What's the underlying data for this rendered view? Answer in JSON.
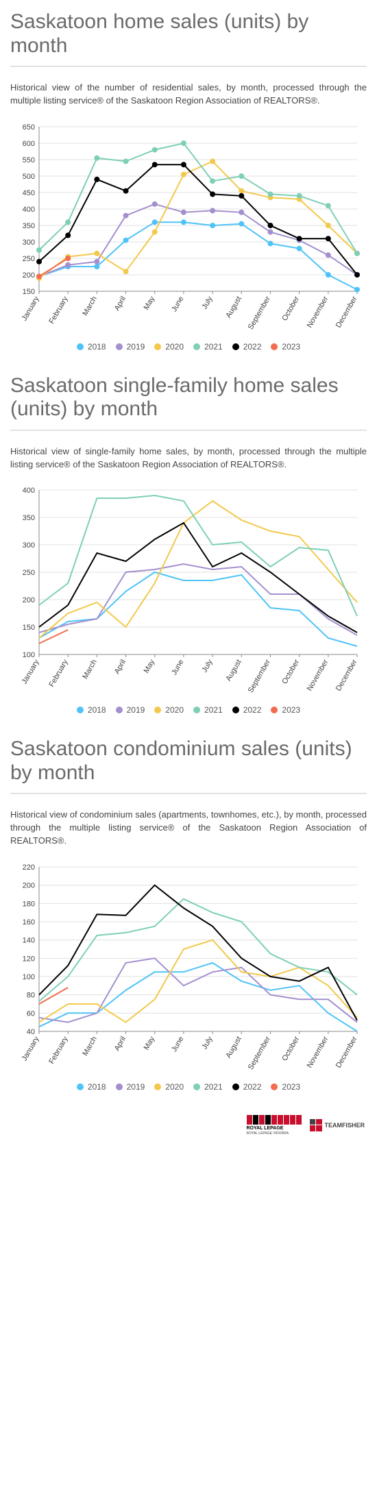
{
  "colors": {
    "grid": "#e0e0e0",
    "axis": "#8a8a8a",
    "text": "#444444",
    "background": "#ffffff"
  },
  "series_colors": {
    "2018": "#4fc3f7",
    "2019": "#a48fce",
    "2020": "#f2c94c",
    "2021": "#7dcfb6",
    "2022": "#000000",
    "2023": "#f26c4f"
  },
  "series_order": [
    "2018",
    "2019",
    "2020",
    "2021",
    "2022",
    "2023"
  ],
  "months": [
    "January",
    "February",
    "March",
    "April",
    "May",
    "June",
    "July",
    "August",
    "September",
    "October",
    "November",
    "December"
  ],
  "footer": {
    "logo1_top": "ROYAL LEPAGE",
    "logo1_sub": "ROYAL LEPAGE VIDORRA",
    "logo2": "TEAMFISHER"
  },
  "charts": [
    {
      "id": "total",
      "title": "Saskatoon home sales (units) by month",
      "desc": "Historical view of the number of residential sales, by month, processed through the multiple listing service® of the Saskatoon Region Association of REALTORS®.",
      "ylim": [
        150,
        650
      ],
      "ytick_step": 50,
      "show_markers": true,
      "series": {
        "2018": [
          195,
          225,
          225,
          305,
          360,
          360,
          350,
          355,
          295,
          280,
          200,
          155
        ],
        "2019": [
          195,
          230,
          240,
          380,
          415,
          390,
          395,
          390,
          330,
          305,
          260,
          200
        ],
        "2020": [
          190,
          255,
          265,
          210,
          330,
          505,
          545,
          455,
          435,
          430,
          350,
          265
        ],
        "2021": [
          275,
          360,
          555,
          545,
          580,
          600,
          485,
          500,
          445,
          440,
          410,
          265
        ],
        "2022": [
          240,
          320,
          490,
          455,
          535,
          535,
          445,
          440,
          350,
          310,
          310,
          200
        ],
        "2023": [
          195,
          250,
          null,
          null,
          null,
          null,
          null,
          null,
          null,
          null,
          null,
          null
        ]
      }
    },
    {
      "id": "single",
      "title": "Saskatoon single-family home sales (units) by month",
      "desc": "Historical view of single-family home sales, by month, processed through the multiple listing service® of the Saskatoon Region Association of REALTORS®.",
      "ylim": [
        100,
        400
      ],
      "ytick_step": 50,
      "show_markers": false,
      "series": {
        "2018": [
          130,
          160,
          165,
          215,
          250,
          235,
          235,
          245,
          185,
          180,
          130,
          115
        ],
        "2019": [
          140,
          155,
          165,
          250,
          255,
          265,
          255,
          260,
          210,
          210,
          165,
          135
        ],
        "2020": [
          130,
          175,
          195,
          150,
          230,
          340,
          380,
          345,
          325,
          315,
          255,
          195
        ],
        "2021": [
          190,
          230,
          385,
          385,
          390,
          380,
          300,
          305,
          260,
          295,
          290,
          170
        ],
        "2022": [
          150,
          190,
          285,
          270,
          310,
          340,
          260,
          285,
          250,
          210,
          170,
          140
        ],
        "2023": [
          120,
          145,
          null,
          null,
          null,
          null,
          null,
          null,
          null,
          null,
          null,
          null
        ]
      }
    },
    {
      "id": "condo",
      "title": "Saskatoon condominium sales (units) by month",
      "desc": "Historical view of condominium sales (apartments, townhomes, etc.), by month, processed through the multiple listing service® of the Saskatoon Region Association of REALTORS®.",
      "ylim": [
        40,
        220
      ],
      "ytick_step": 20,
      "show_markers": false,
      "series": {
        "2018": [
          45,
          60,
          60,
          85,
          105,
          105,
          115,
          95,
          85,
          90,
          60,
          40
        ],
        "2019": [
          55,
          50,
          60,
          115,
          120,
          90,
          105,
          110,
          80,
          75,
          75,
          50
        ],
        "2020": [
          50,
          70,
          70,
          50,
          75,
          130,
          140,
          105,
          100,
          110,
          90,
          55
        ],
        "2021": [
          73,
          100,
          145,
          148,
          155,
          185,
          170,
          160,
          125,
          110,
          105,
          80
        ],
        "2022": [
          80,
          112,
          168,
          167,
          200,
          175,
          155,
          120,
          100,
          95,
          110,
          52
        ],
        "2023": [
          70,
          88,
          null,
          null,
          null,
          null,
          null,
          null,
          null,
          null,
          null,
          null
        ]
      }
    }
  ]
}
